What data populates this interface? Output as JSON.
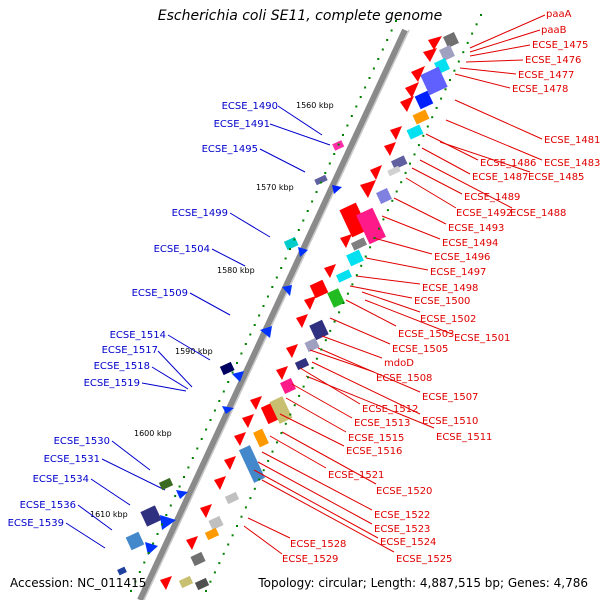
{
  "title": "Escherichia coli SE11, complete genome",
  "accession": "Accession: NC_011415",
  "summary": "Topology: circular; Length: 4,887,515 bp; Genes: 4,786",
  "scale_ticks": [
    "1560 kbp",
    "1570 kbp",
    "1580 kbp",
    "1590 kbp",
    "1600 kbp",
    "1610 kbp"
  ],
  "labels_left": [
    "ECSE_1490",
    "ECSE_1491",
    "ECSE_1495",
    "ECSE_1499",
    "ECSE_1504",
    "ECSE_1509",
    "ECSE_1514",
    "ECSE_1517",
    "ECSE_1518",
    "ECSE_1519",
    "ECSE_1530",
    "ECSE_1531",
    "ECSE_1534",
    "ECSE_1536",
    "ECSE_1539"
  ],
  "labels_right": [
    "paaA",
    "paaB",
    "ECSE_1475",
    "ECSE_1476",
    "ECSE_1477",
    "ECSE_1478",
    "ECSE_1481",
    "ECSE_1483",
    "ECSE_1486",
    "ECSE_1487",
    "ECSE_1485",
    "ECSE_1489",
    "ECSE_1492",
    "ECSE_1488",
    "ECSE_1493",
    "ECSE_1494",
    "ECSE_1496",
    "ECSE_1497",
    "ECSE_1498",
    "ECSE_1500",
    "ECSE_1502",
    "ECSE_1503",
    "ECSE_1501",
    "ECSE_1505",
    "mdoD",
    "ECSE_1508",
    "ECSE_1507",
    "ECSE_1512",
    "ECSE_1510",
    "ECSE_1513",
    "ECSE_1511",
    "ECSE_1515",
    "ECSE_1516",
    "ECSE_1521",
    "ECSE_1520",
    "ECSE_1522",
    "ECSE_1523",
    "ECSE_1524",
    "ECSE_1528",
    "ECSE_1525",
    "ECSE_1529"
  ],
  "colors": {
    "left_label": "#0000cc",
    "right_label": "#e00000",
    "backbone": "#888888",
    "dot": "#008000"
  }
}
